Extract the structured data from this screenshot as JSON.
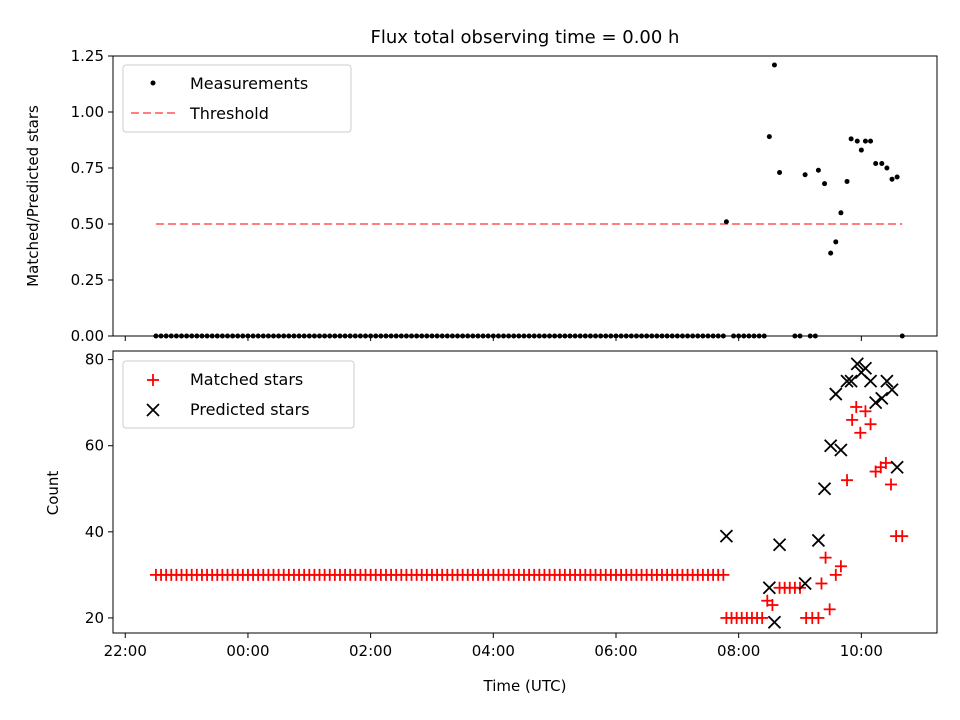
{
  "title": "Flux total observing time = 0.00 h",
  "top": {
    "ylabel": "Matched/Predicted stars",
    "ylim": [
      0,
      1.25
    ],
    "yticks": [
      "0.00",
      "0.25",
      "0.50",
      "0.75",
      "1.00",
      "1.25"
    ],
    "legend": [
      {
        "label": "Measurements",
        "kind": "dot",
        "color": "#000000"
      },
      {
        "label": "Threshold",
        "kind": "dash",
        "color": "#ff7f7f"
      }
    ]
  },
  "bottom": {
    "ylabel": "Count",
    "xlabel": "Time (UTC)",
    "ylim": [
      16.5,
      82
    ],
    "yticks": [
      "20",
      "40",
      "60",
      "80"
    ],
    "legend": [
      {
        "label": "Matched stars",
        "kind": "plus",
        "color": "#ff0000"
      },
      {
        "label": "Predicted stars",
        "kind": "x",
        "color": "#000000"
      }
    ]
  },
  "xticks": [
    "22:00",
    "00:00",
    "02:00",
    "04:00",
    "06:00",
    "08:00",
    "10:00"
  ],
  "chart_data": [
    {
      "type": "scatter",
      "panel": "top",
      "title": "Flux total observing time = 0.00 h",
      "ylabel": "Matched/Predicted stars",
      "xlim": [
        "21:48",
        "11:14"
      ],
      "ylim": [
        0,
        1.25
      ],
      "grid": false,
      "legend_position": "upper-left",
      "series": [
        {
          "name": "Measurements",
          "color": "#000000",
          "points": [
            [
              "07:48",
              0.51
            ],
            [
              "08:30",
              0.89
            ],
            [
              "08:35",
              1.21
            ],
            [
              "08:40",
              0.73
            ],
            [
              "09:05",
              0.72
            ],
            [
              "09:18",
              0.74
            ],
            [
              "09:24",
              0.68
            ],
            [
              "09:30",
              0.37
            ],
            [
              "09:35",
              0.42
            ],
            [
              "09:40",
              0.55
            ],
            [
              "09:46",
              0.69
            ],
            [
              "09:50",
              0.88
            ],
            [
              "09:56",
              0.87
            ],
            [
              "10:00",
              0.83
            ],
            [
              "10:04",
              0.87
            ],
            [
              "10:09",
              0.87
            ],
            [
              "10:14",
              0.77
            ],
            [
              "10:20",
              0.77
            ],
            [
              "10:25",
              0.75
            ],
            [
              "10:30",
              0.7
            ],
            [
              "10:35",
              0.71
            ],
            [
              "10:40",
              0.0
            ]
          ],
          "zero_run": {
            "value": 0.0,
            "from": "22:30",
            "to": "07:45",
            "every_min": 5
          },
          "zero_extra": [
            "07:55",
            "08:00",
            "08:05",
            "08:10",
            "08:15",
            "08:20",
            "08:25",
            "08:55",
            "09:00",
            "09:10",
            "09:15"
          ]
        },
        {
          "name": "Threshold",
          "color": "#ff7f7f",
          "style": "dashed",
          "points": [
            [
              "22:30",
              0.5
            ],
            [
              "10:40",
              0.5
            ]
          ]
        }
      ]
    },
    {
      "type": "scatter",
      "panel": "bottom",
      "xlabel": "Time (UTC)",
      "ylabel": "Count",
      "xlim": [
        "21:48",
        "11:14"
      ],
      "ylim": [
        16.5,
        82
      ],
      "grid": false,
      "legend_position": "upper-left",
      "series": [
        {
          "name": "Matched stars",
          "color": "#ff0000",
          "marker": "plus",
          "run": {
            "value": 30,
            "from": "22:30",
            "to": "07:45",
            "every_min": 5
          },
          "points": [
            [
              "07:48",
              20
            ],
            [
              "07:53",
              20
            ],
            [
              "07:58",
              20
            ],
            [
              "08:03",
              20
            ],
            [
              "08:08",
              20
            ],
            [
              "08:13",
              20
            ],
            [
              "08:18",
              20
            ],
            [
              "08:23",
              20
            ],
            [
              "08:28",
              24
            ],
            [
              "08:33",
              23
            ],
            [
              "08:40",
              27
            ],
            [
              "08:45",
              27
            ],
            [
              "08:50",
              27
            ],
            [
              "08:55",
              27
            ],
            [
              "09:00",
              27
            ],
            [
              "09:06",
              20
            ],
            [
              "09:12",
              20
            ],
            [
              "09:18",
              20
            ],
            [
              "09:21",
              28
            ],
            [
              "09:25",
              34
            ],
            [
              "09:29",
              22
            ],
            [
              "09:35",
              30
            ],
            [
              "09:40",
              32
            ],
            [
              "09:46",
              52
            ],
            [
              "09:51",
              66
            ],
            [
              "09:55",
              69
            ],
            [
              "09:59",
              63
            ],
            [
              "10:04",
              68
            ],
            [
              "10:09",
              65
            ],
            [
              "10:14",
              54
            ],
            [
              "10:19",
              55
            ],
            [
              "10:24",
              56
            ],
            [
              "10:29",
              51
            ],
            [
              "10:34",
              39
            ],
            [
              "10:40",
              39
            ]
          ]
        },
        {
          "name": "Predicted stars",
          "color": "#000000",
          "marker": "x",
          "points": [
            [
              "07:48",
              39
            ],
            [
              "08:30",
              27
            ],
            [
              "08:35",
              19
            ],
            [
              "08:40",
              37
            ],
            [
              "09:05",
              28
            ],
            [
              "09:18",
              38
            ],
            [
              "09:24",
              50
            ],
            [
              "09:30",
              60
            ],
            [
              "09:35",
              72
            ],
            [
              "09:40",
              59
            ],
            [
              "09:46",
              75
            ],
            [
              "09:50",
              75
            ],
            [
              "09:56",
              79
            ],
            [
              "10:00",
              77
            ],
            [
              "10:04",
              78
            ],
            [
              "10:09",
              75
            ],
            [
              "10:14",
              70
            ],
            [
              "10:20",
              71
            ],
            [
              "10:25",
              75
            ],
            [
              "10:30",
              73
            ],
            [
              "10:35",
              55
            ]
          ]
        }
      ]
    }
  ]
}
